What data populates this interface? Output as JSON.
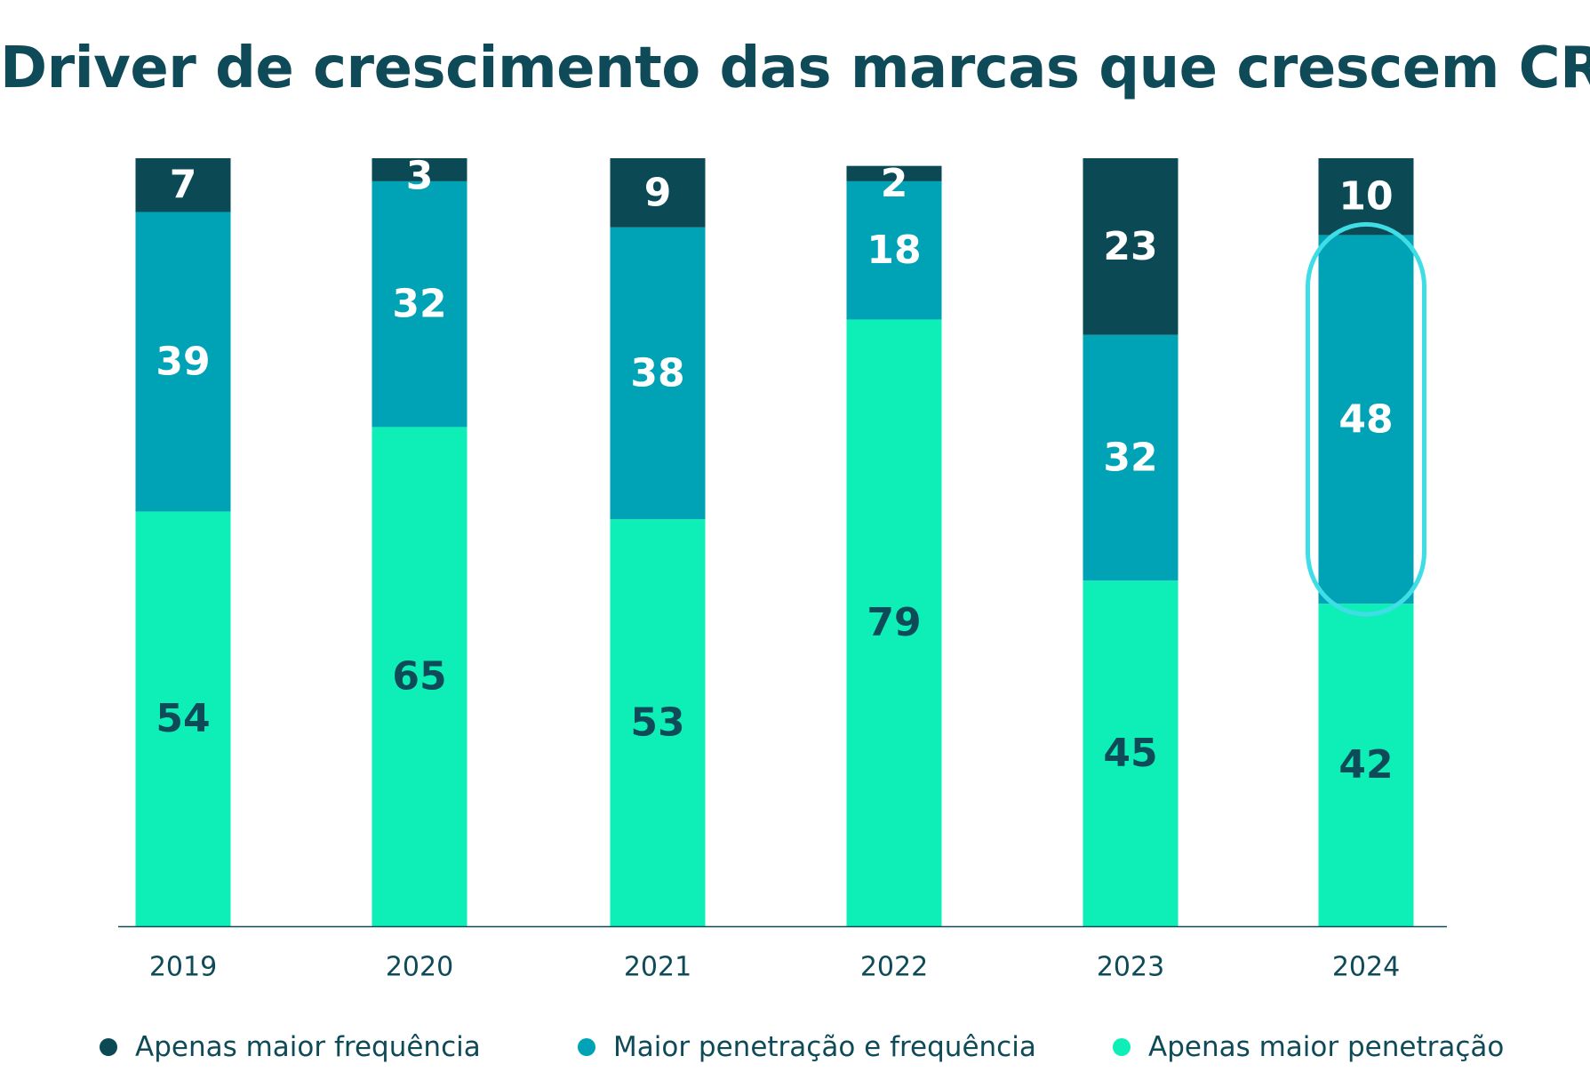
{
  "title": "Driver de crescimento das marcas que crescem CRP",
  "colors": {
    "title": "#0e4a58",
    "axis_text": "#0e4a58",
    "highlight_outline": "#3fdde6"
  },
  "legend": [
    {
      "label": "Apenas maior frequência",
      "color": "#0b4a55"
    },
    {
      "label": "Maior penetração e frequência",
      "color": "#00a2b5"
    },
    {
      "label": "Apenas maior penetração",
      "color": "#0eefb8"
    }
  ],
  "chart_data": {
    "type": "bar",
    "stacked": true,
    "title": "Driver de crescimento das marcas que crescem CRP",
    "categories": [
      "2019",
      "2020",
      "2021",
      "2022",
      "2023",
      "2024"
    ],
    "series": [
      {
        "name": "Apenas maior penetração",
        "values": [
          54,
          65,
          53,
          79,
          45,
          42
        ],
        "color": "#0eefb8",
        "label_color": "#0e4a58"
      },
      {
        "name": "Maior penetração e frequência",
        "values": [
          39,
          32,
          38,
          18,
          32,
          48
        ],
        "color": "#00a2b5",
        "label_color": "#ffffff"
      },
      {
        "name": "Apenas maior frequência",
        "values": [
          7,
          3,
          9,
          2,
          23,
          10
        ],
        "color": "#0b4a55",
        "label_color": "#ffffff"
      }
    ],
    "ylim": [
      0,
      100
    ],
    "grid": false,
    "legend_position": "bottom",
    "highlight": {
      "category": "2024",
      "series": "Maior penetração e frequência"
    }
  }
}
